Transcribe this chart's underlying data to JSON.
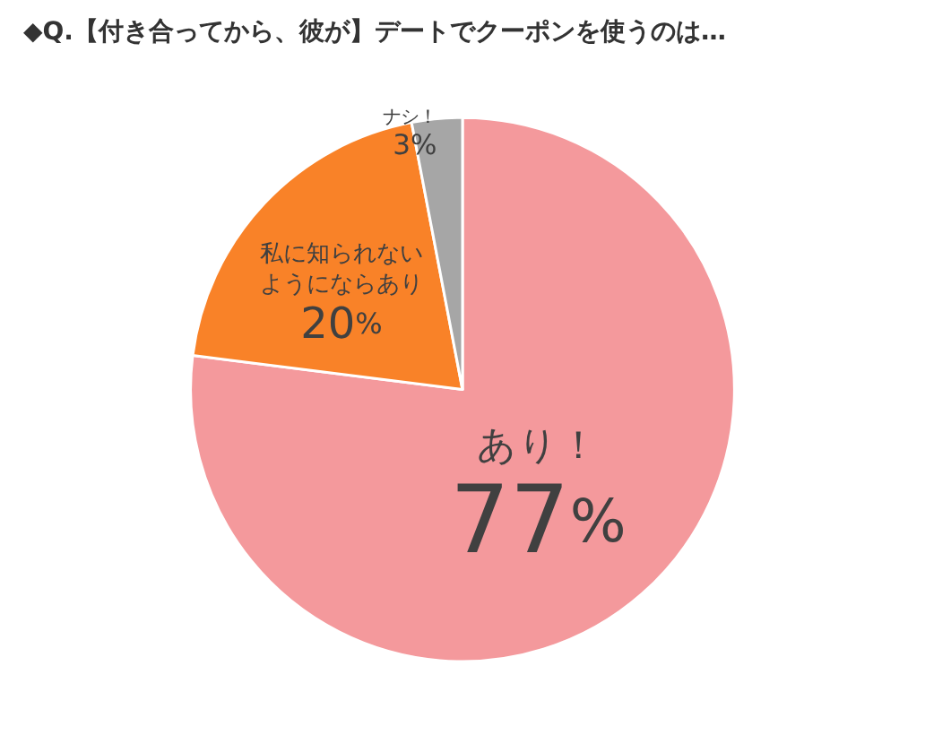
{
  "chart_data": {
    "type": "pie",
    "title": "◆Q.【付き合ってから、彼が】デートでクーポンを使うのは…",
    "categories": [
      "あり！",
      "私に知られないようにならあり",
      "ナシ！"
    ],
    "values": [
      77,
      20,
      3
    ],
    "value_labels": [
      "77%",
      "20%",
      "3%"
    ],
    "colors": [
      "#f4999c",
      "#f98228",
      "#a6a6a6"
    ]
  }
}
